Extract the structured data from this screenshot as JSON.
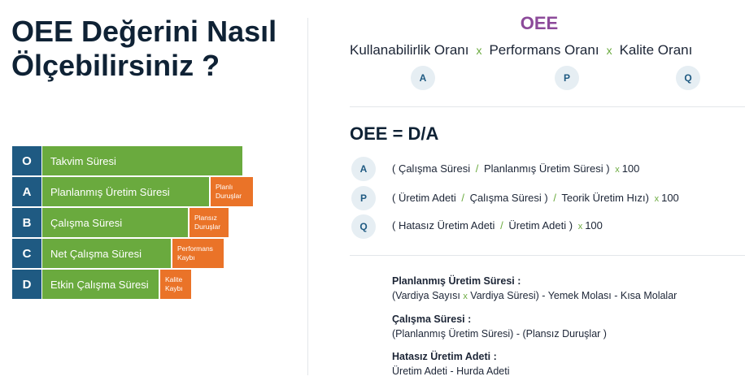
{
  "title": "OEE Değerini Nasıl Ölçebilirsiniz ?",
  "bars": [
    {
      "letter": "O",
      "label": "Takvim Süresi"
    },
    {
      "letter": "A",
      "label": "Planlanmış Üretim Süresi",
      "loss": "Planlı Duruşlar"
    },
    {
      "letter": "B",
      "label": "Çalışma Süresi",
      "loss": "Plansız Duruşlar"
    },
    {
      "letter": "C",
      "label": "Net Çalışma Süresi",
      "loss": "Performans Kaybı"
    },
    {
      "letter": "D",
      "label": "Etkin Çalışma Süresi",
      "loss": "Kalite Kaybı"
    }
  ],
  "oee_heading": "OEE",
  "formula": {
    "terms": [
      "Kullanabilirlik Oranı",
      "Performans Oranı",
      "Kalite Oranı"
    ],
    "operator": "x",
    "letters": [
      "A",
      "P",
      "Q"
    ]
  },
  "oee_equation": "OEE = D/A",
  "rows": [
    {
      "letter": "A",
      "p1": "( Çalışma Süresi",
      "slash1": "/",
      "p2": "Planlanmış Üretim Süresi )",
      "x": "x",
      "mult": "100"
    },
    {
      "letter": "P",
      "p1": "( Üretim Adeti",
      "slash1": "/",
      "p2": "Çalışma Süresi )",
      "slash2": "/",
      "p3": "Teorik Üretim Hızı)",
      "x": "x",
      "mult": "100"
    },
    {
      "letter": "Q",
      "p1": "( Hatasız Üretim Adeti",
      "slash1": "/",
      "p2": "Üretim Adeti )",
      "x": "x",
      "mult": "100"
    }
  ],
  "definitions": [
    {
      "heading": "Planlanmış Üretim Süresi :",
      "body_a": "(Vardiya Sayısı",
      "x": "x",
      "body_b": "Vardiya Süresi) - Yemek Molası - Kısa Molalar"
    },
    {
      "heading": "Çalışma Süresi :",
      "body": "(Planlanmış Üretim Süresi) - (Plansız Duruşlar )"
    },
    {
      "heading": "Hatasız Üretim Adeti :",
      "body": "Üretim Adeti - Hurda Adeti"
    }
  ],
  "colors": {
    "navy": "#1f5a82",
    "green": "#6aaa3e",
    "orange": "#ea7328",
    "purple": "#8c4a9a"
  }
}
